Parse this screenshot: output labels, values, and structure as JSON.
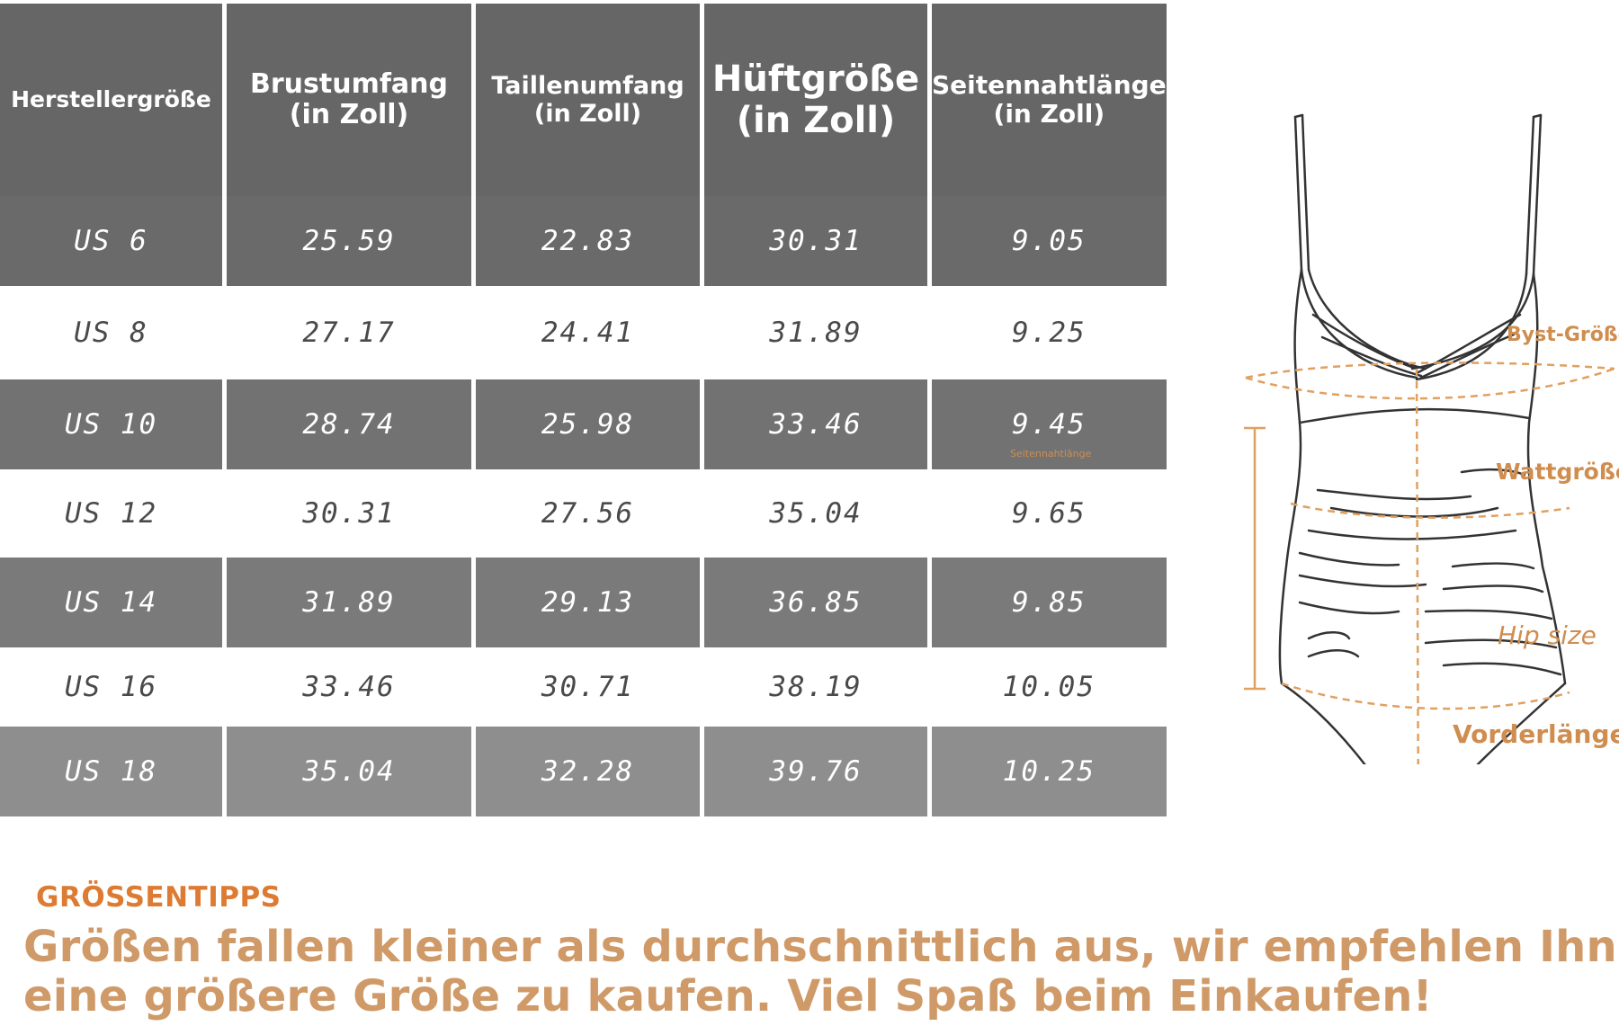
{
  "headers": [
    {
      "line1": "Herstellergröße",
      "line2": ""
    },
    {
      "line1": "Brustumfang",
      "line2": "(in Zoll)"
    },
    {
      "line1": "Taillenumfang",
      "line2": "(in Zoll)"
    },
    {
      "line1": "Hüftgröße",
      "line2": "(in Zoll)"
    },
    {
      "line1": "Seitennahtlänge",
      "line2": "(in Zoll)"
    }
  ],
  "rows": [
    {
      "cells": [
        "US 6",
        "25.59",
        "22.83",
        "30.31",
        "9.05"
      ],
      "bg": "#6a6a6a"
    },
    {
      "cells": [
        "US 8",
        "27.17",
        "24.41",
        "31.89",
        "9.25"
      ],
      "bg": "#ffffff"
    },
    {
      "cells": [
        "US 10",
        "28.74",
        "25.98",
        "33.46",
        "9.45"
      ],
      "bg": "#727272"
    },
    {
      "cells": [
        "US 12",
        "30.31",
        "27.56",
        "35.04",
        "9.65"
      ],
      "bg": "#ffffff"
    },
    {
      "cells": [
        "US 14",
        "31.89",
        "29.13",
        "36.85",
        "9.85"
      ],
      "bg": "#7a7a7a"
    },
    {
      "cells": [
        "US 16",
        "33.46",
        "30.71",
        "38.19",
        "10.05"
      ],
      "bg": "#ffffff"
    },
    {
      "cells": [
        "US 18",
        "35.04",
        "32.28",
        "39.76",
        "10.25"
      ],
      "bg": "#8e8e8e"
    }
  ],
  "diagram_labels": {
    "bust": "Byst-Größe",
    "waist": "Wattgröße",
    "hip": "Hip size",
    "front_length": "Vorderlänge",
    "side_seam": "Seitennahtlänge"
  },
  "tips": {
    "heading": "GRÖSSENTIPPS",
    "line1": "Größen fallen kleiner als durchschnittlich aus, wir empfehlen Ihnen,",
    "line2": "eine größere Größe zu kaufen. Viel Spaß beim Einkaufen!"
  },
  "colors": {
    "header_bg": "#666666",
    "accent_orange": "#dd7b33",
    "tip_text": "#cf9a68",
    "measure_line": "#e0a060"
  }
}
